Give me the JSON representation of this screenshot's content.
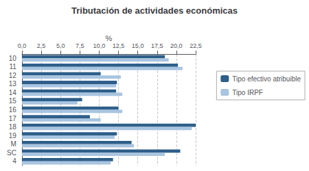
{
  "chart_data": {
    "type": "bar",
    "orientation": "horizontal",
    "title": "Tributación de actividades económicas",
    "xlabel": "%",
    "categories": [
      "4",
      "SC",
      "M",
      "19",
      "18",
      "17",
      "16",
      "15",
      "14",
      "13",
      "12",
      "11",
      "10"
    ],
    "series": [
      {
        "name": "Tipo efectivo atribuible",
        "color": "#2E5F8A",
        "values": [
          11.8,
          20.5,
          14.2,
          12.3,
          22.5,
          8.8,
          12.5,
          7.8,
          12.2,
          12.3,
          10.2,
          20.2,
          18.5
        ]
      },
      {
        "name": "Tipo IRPF",
        "color": "#A8C4E0",
        "values": [
          11.5,
          18.5,
          14.5,
          12.0,
          22.0,
          10.2,
          13.0,
          7.2,
          13.0,
          12.2,
          12.8,
          20.8,
          19.0
        ]
      }
    ],
    "xlim": [
      0,
      22.5
    ],
    "xticks": [
      {
        "value": 0.0,
        "label": "0,0"
      },
      {
        "value": 2.5,
        "label": "2,5"
      },
      {
        "value": 5.0,
        "label": "5,0"
      },
      {
        "value": 7.5,
        "label": "7,5"
      },
      {
        "value": 10.0,
        "label": "10,0"
      },
      {
        "value": 12.5,
        "label": "12,5"
      },
      {
        "value": 15.0,
        "label": "15,0"
      },
      {
        "value": 17.5,
        "label": "17,5"
      },
      {
        "value": 20.0,
        "label": "20,0"
      },
      {
        "value": 22.5,
        "label": "22,5"
      }
    ],
    "grid": true,
    "legend": "right"
  }
}
